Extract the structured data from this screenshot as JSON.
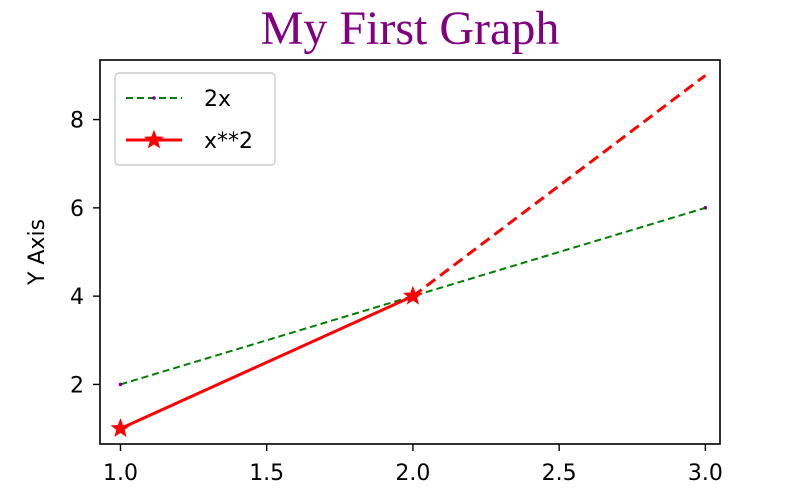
{
  "chart_data": {
    "type": "line",
    "title": "My First Graph",
    "xlabel": "",
    "ylabel": "Y Axis",
    "xlim": [
      0.93,
      3.05
    ],
    "ylim": [
      0.65,
      9.35
    ],
    "xticks": [
      1.0,
      1.5,
      2.0,
      2.5,
      3.0
    ],
    "xtick_labels": [
      "1.0",
      "1.5",
      "2.0",
      "2.5",
      "3.0"
    ],
    "yticks": [
      2,
      4,
      6,
      8
    ],
    "ytick_labels": [
      "2",
      "4",
      "6",
      "8"
    ],
    "grid": false,
    "legend_position": "top-left",
    "series": [
      {
        "name": "2x",
        "x": [
          1,
          2,
          3
        ],
        "y": [
          2,
          4,
          6
        ],
        "color": "#008000",
        "marker_color": "#800080",
        "linestyle": "dashed",
        "marker": "point"
      },
      {
        "name": "x**2",
        "x": [
          1,
          2,
          3
        ],
        "y": [
          1,
          4,
          9
        ],
        "color": "#ff0000",
        "linestyle": "solid-then-dashed",
        "marker": "star"
      }
    ],
    "colors": {
      "title": "#800080"
    }
  }
}
